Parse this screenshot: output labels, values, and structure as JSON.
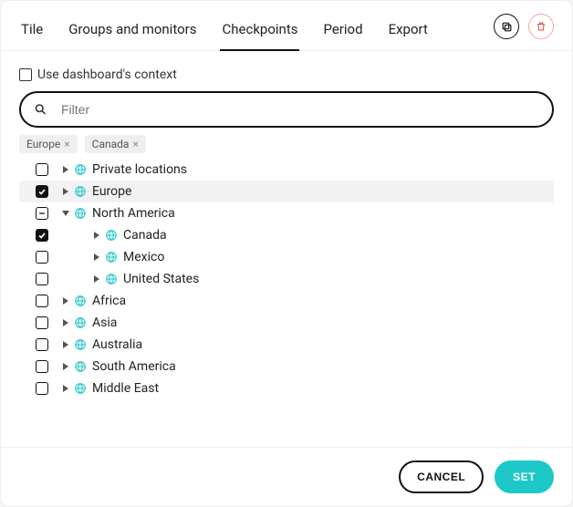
{
  "tabs": {
    "items": [
      {
        "label": "Tile",
        "active": false
      },
      {
        "label": "Groups and monitors",
        "active": false
      },
      {
        "label": "Checkpoints",
        "active": true
      },
      {
        "label": "Period",
        "active": false
      },
      {
        "label": "Export",
        "active": false
      }
    ]
  },
  "header_icons": {
    "duplicate": "duplicate",
    "delete": "delete"
  },
  "context": {
    "label": "Use dashboard's context",
    "checked": false
  },
  "search": {
    "placeholder": "Filter",
    "value": ""
  },
  "chips": [
    {
      "label": "Europe"
    },
    {
      "label": "Canada"
    }
  ],
  "tree": [
    {
      "label": "Private locations",
      "state": "unchecked",
      "expanded": false,
      "selected": false,
      "depth": 0
    },
    {
      "label": "Europe",
      "state": "checked",
      "expanded": false,
      "selected": true,
      "depth": 0
    },
    {
      "label": "North America",
      "state": "indeterminate",
      "expanded": true,
      "selected": false,
      "depth": 0
    },
    {
      "label": "Canada",
      "state": "checked",
      "expanded": false,
      "selected": false,
      "depth": 1
    },
    {
      "label": "Mexico",
      "state": "unchecked",
      "expanded": false,
      "selected": false,
      "depth": 1
    },
    {
      "label": "United States",
      "state": "unchecked",
      "expanded": false,
      "selected": false,
      "depth": 1
    },
    {
      "label": "Africa",
      "state": "unchecked",
      "expanded": false,
      "selected": false,
      "depth": 0
    },
    {
      "label": "Asia",
      "state": "unchecked",
      "expanded": false,
      "selected": false,
      "depth": 0
    },
    {
      "label": "Australia",
      "state": "unchecked",
      "expanded": false,
      "selected": false,
      "depth": 0
    },
    {
      "label": "South America",
      "state": "unchecked",
      "expanded": false,
      "selected": false,
      "depth": 0
    },
    {
      "label": "Middle East",
      "state": "unchecked",
      "expanded": false,
      "selected": false,
      "depth": 0
    }
  ],
  "footer": {
    "cancel": "CANCEL",
    "set": "SET"
  },
  "colors": {
    "accent": "#1ec8c8",
    "globe": "#32c8c8",
    "danger": "#e05252",
    "border": "#eeeeee",
    "chip_bg": "#efefef",
    "text": "#222222"
  }
}
